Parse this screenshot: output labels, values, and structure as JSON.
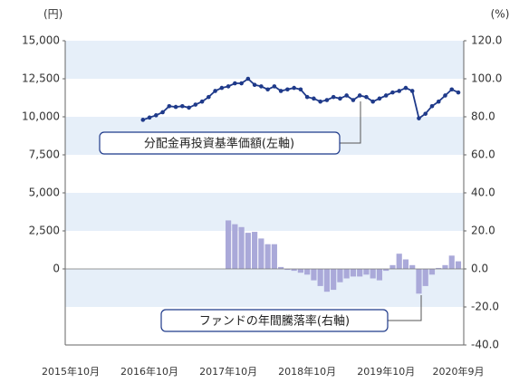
{
  "chart_data": {
    "type": "bar-line",
    "y_label": "(円)",
    "y2_label": "(%)",
    "categories": [
      "2015年10月",
      null,
      null,
      null,
      null,
      null,
      null,
      null,
      null,
      null,
      null,
      null,
      "2016年10月",
      null,
      null,
      null,
      null,
      null,
      null,
      null,
      null,
      null,
      null,
      null,
      "2017年10月",
      null,
      null,
      null,
      null,
      null,
      null,
      null,
      null,
      null,
      null,
      null,
      "2018年10月",
      null,
      null,
      null,
      null,
      null,
      null,
      null,
      null,
      null,
      null,
      null,
      "2019年10月",
      null,
      null,
      null,
      null,
      null,
      null,
      null,
      null,
      null,
      null,
      "2020年9月"
    ],
    "ylim": [
      -5000,
      15000
    ],
    "yticks": [
      0,
      {
        "value": 2500,
        "label": "2,500"
      },
      {
        "value": 5000,
        "label": "5,000"
      },
      {
        "value": 7500,
        "label": "7,500"
      },
      {
        "value": 10000,
        "label": "10,000"
      },
      {
        "value": 12500,
        "label": "12,500"
      },
      {
        "value": 15000,
        "label": "15,000"
      }
    ],
    "y2lim": [
      -40,
      120
    ],
    "y2ticks": [
      {
        "value": -40,
        "label": "-40.0"
      },
      {
        "value": -20,
        "label": "-20.0"
      },
      {
        "value": 0,
        "label": "0.0"
      },
      {
        "value": 20,
        "label": "20.0"
      },
      {
        "value": 40,
        "label": "40.0"
      },
      {
        "value": 60,
        "label": "60.0"
      },
      {
        "value": 80,
        "label": "80.0"
      },
      {
        "value": 100,
        "label": "100.0"
      },
      {
        "value": 120,
        "label": "120.0"
      }
    ],
    "series": [
      {
        "name": "分配金再投資基準価額(左軸)",
        "type": "line",
        "color": "#1f3a8a",
        "values": [
          null,
          null,
          null,
          null,
          null,
          null,
          null,
          null,
          null,
          null,
          null,
          9800,
          9950,
          10100,
          10300,
          10700,
          10650,
          10700,
          10600,
          10800,
          11000,
          11300,
          11700,
          11900,
          12000,
          12200,
          12200,
          12500,
          12100,
          12000,
          11800,
          12000,
          11700,
          11800,
          11900,
          11800,
          11300,
          11200,
          11000,
          11100,
          11300,
          11200,
          11400,
          11100,
          11400,
          11300,
          11000,
          11200,
          11400,
          11600,
          11700,
          11900,
          11700,
          9900,
          10200,
          10700,
          11000,
          11400,
          11800,
          11600
        ]
      },
      {
        "name": "ファンドの年間騰落率(右軸)",
        "type": "bar",
        "axis": "y2",
        "color": "#aaa9d9",
        "values": [
          null,
          null,
          null,
          null,
          null,
          null,
          null,
          null,
          null,
          null,
          null,
          null,
          null,
          null,
          null,
          null,
          null,
          null,
          null,
          null,
          null,
          null,
          null,
          null,
          25.5,
          23.5,
          22,
          19,
          19.5,
          16,
          13,
          13,
          1,
          -0.5,
          -1,
          -2,
          -3,
          -6,
          -9,
          -12,
          -11,
          -7,
          -5,
          -4,
          -4,
          -3,
          -5,
          -6,
          -1,
          2,
          8,
          5,
          2,
          -13,
          -9,
          -3,
          0.5,
          2,
          7,
          4
        ]
      }
    ]
  }
}
